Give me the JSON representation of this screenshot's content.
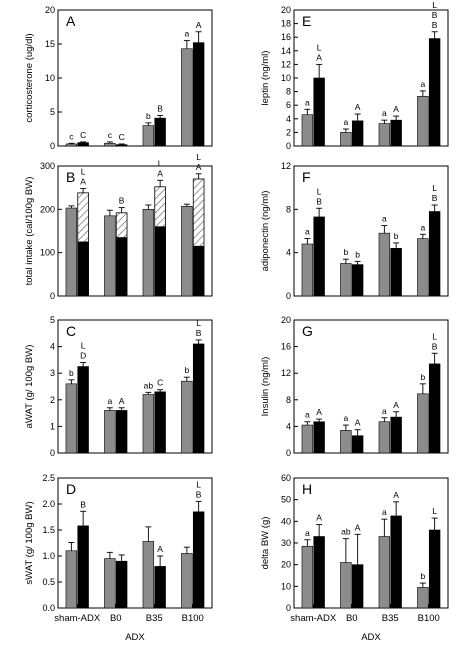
{
  "colors": {
    "gray": "#8c8c8c",
    "black": "#000000",
    "hatch_line": "#555555"
  },
  "x_group_label": "ADX",
  "chart_data": [
    {
      "panel": "A",
      "type": "bar",
      "ylabel": "corticosterone (ug/dl)",
      "ylim": [
        0,
        20
      ],
      "yticks": [
        0,
        5,
        10,
        15,
        20
      ],
      "categories": [
        "sham-ADX",
        "B0",
        "B35",
        "B100"
      ],
      "series": [
        {
          "values": [
            0.3,
            0.4,
            3.0,
            14.3
          ],
          "errors": [
            0.1,
            0.2,
            0.4,
            1.2
          ]
        },
        {
          "values": [
            0.5,
            0.2,
            4.1,
            15.2
          ],
          "errors": [
            0.1,
            0.1,
            0.4,
            1.6
          ]
        }
      ],
      "labels": [
        [
          "c",
          "C"
        ],
        [
          "c",
          "C"
        ],
        [
          "b",
          "B"
        ],
        [
          "a",
          "A"
        ]
      ],
      "show_xticks": false
    },
    {
      "panel": "B",
      "type": "bar",
      "stacked_hatched": true,
      "ylabel": "total intake (cal/100g BW)",
      "ylim": [
        0,
        300
      ],
      "yticks": [
        0,
        100,
        200,
        300
      ],
      "categories": [
        "sham-ADX",
        "B0",
        "B35",
        "B100"
      ],
      "series": [
        {
          "values": [
            203,
            185,
            200,
            207
          ],
          "errors": [
            5,
            13,
            10,
            5
          ]
        },
        {
          "values": [
            125,
            135,
            160,
            115
          ],
          "errors": [
            0,
            0,
            0,
            0
          ],
          "total": [
            238,
            192,
            252,
            270
          ],
          "total_errors": [
            10,
            12,
            15,
            12
          ]
        }
      ],
      "labels": [
        [
          "",
          "L\nA"
        ],
        [
          "",
          "B"
        ],
        [
          "",
          "L\nA"
        ],
        [
          "",
          "L\nA"
        ]
      ],
      "show_xticks": false
    },
    {
      "panel": "C",
      "type": "bar",
      "ylabel": "aWAT (g/ 100g BW)",
      "ylim": [
        0,
        5
      ],
      "yticks": [
        0,
        1,
        2,
        3,
        4,
        5
      ],
      "categories": [
        "sham-ADX",
        "B0",
        "B35",
        "B100"
      ],
      "series": [
        {
          "values": [
            2.6,
            1.6,
            2.2,
            2.7
          ],
          "errors": [
            0.15,
            0.1,
            0.08,
            0.15
          ]
        },
        {
          "values": [
            3.25,
            1.6,
            2.3,
            4.1
          ],
          "errors": [
            0.15,
            0.1,
            0.08,
            0.15
          ]
        }
      ],
      "labels": [
        [
          "b",
          "L\nD"
        ],
        [
          "a",
          "A"
        ],
        [
          "ab",
          "C"
        ],
        [
          "b",
          "L\nB"
        ]
      ],
      "show_xticks": false
    },
    {
      "panel": "D",
      "type": "bar",
      "ylabel": "sWAT (g/ 100g BW)",
      "ylim": [
        0,
        2.5
      ],
      "yticks": [
        0.0,
        0.5,
        1.0,
        1.5,
        2.0,
        2.5
      ],
      "categories": [
        "sham-ADX",
        "B0",
        "B35",
        "B100"
      ],
      "series": [
        {
          "values": [
            1.1,
            0.95,
            1.28,
            1.05
          ],
          "errors": [
            0.16,
            0.12,
            0.28,
            0.12
          ]
        },
        {
          "values": [
            1.58,
            0.9,
            0.8,
            1.85
          ],
          "errors": [
            0.28,
            0.12,
            0.2,
            0.2
          ]
        }
      ],
      "labels": [
        [
          "",
          "B"
        ],
        [
          "",
          ""
        ],
        [
          "",
          "A"
        ],
        [
          "",
          "L\nB"
        ]
      ],
      "show_xticks": true
    },
    {
      "panel": "E",
      "type": "bar",
      "ylabel": "leptin (ng/ml)",
      "ylim": [
        0,
        20
      ],
      "yticks": [
        0,
        2,
        4,
        6,
        8,
        10,
        12,
        14,
        16,
        18,
        20
      ],
      "categories": [
        "sham-ADX",
        "B0",
        "B35",
        "B100"
      ],
      "series": [
        {
          "values": [
            4.6,
            2.0,
            3.3,
            7.3
          ],
          "errors": [
            0.8,
            0.5,
            0.5,
            0.8
          ]
        },
        {
          "values": [
            10.0,
            3.7,
            3.8,
            15.8
          ],
          "errors": [
            2.0,
            1.0,
            0.6,
            1.0
          ]
        }
      ],
      "labels": [
        [
          "a",
          "L\nA"
        ],
        [
          "a",
          "A"
        ],
        [
          "a",
          "A"
        ],
        [
          "a",
          "L\nB\nB"
        ]
      ],
      "show_xticks": false
    },
    {
      "panel": "F",
      "type": "bar",
      "ylabel": "adiponectin (ng/ml)",
      "ylim": [
        0,
        12
      ],
      "yticks": [
        0,
        4,
        8,
        12
      ],
      "categories": [
        "sham-ADX",
        "B0",
        "B35",
        "B100"
      ],
      "series": [
        {
          "values": [
            4.8,
            3.0,
            5.8,
            5.3
          ],
          "errors": [
            0.5,
            0.4,
            0.7,
            0.4
          ]
        },
        {
          "values": [
            7.3,
            2.9,
            4.4,
            7.8
          ],
          "errors": [
            0.8,
            0.3,
            0.5,
            0.6
          ]
        }
      ],
      "labels": [
        [
          "a",
          "L\nB"
        ],
        [
          "b",
          "b"
        ],
        [
          "a",
          "b"
        ],
        [
          "a",
          "L\nB"
        ]
      ],
      "show_xticks": false
    },
    {
      "panel": "G",
      "type": "bar",
      "ylabel": "Insulin (ng/ml)",
      "ylim": [
        0,
        20
      ],
      "yticks": [
        0,
        4,
        8,
        12,
        16,
        20
      ],
      "categories": [
        "sham-ADX",
        "B0",
        "B35",
        "B100"
      ],
      "series": [
        {
          "values": [
            4.2,
            3.4,
            4.7,
            8.9
          ],
          "errors": [
            0.5,
            0.8,
            0.6,
            1.5
          ]
        },
        {
          "values": [
            4.7,
            2.6,
            5.4,
            13.4
          ],
          "errors": [
            0.4,
            0.9,
            0.8,
            1.6
          ]
        }
      ],
      "labels": [
        [
          "a",
          "A"
        ],
        [
          "a",
          "A"
        ],
        [
          "a",
          "A"
        ],
        [
          "b",
          "L\nB"
        ]
      ],
      "show_xticks": false
    },
    {
      "panel": "H",
      "type": "bar",
      "ylabel": "delta BW (g)",
      "ylim": [
        0,
        60
      ],
      "yticks": [
        0,
        10,
        20,
        30,
        40,
        50,
        60
      ],
      "categories": [
        "sham-ADX",
        "B0",
        "B35",
        "B100"
      ],
      "series": [
        {
          "values": [
            28.5,
            21.0,
            33.0,
            9.5
          ],
          "errors": [
            3.0,
            11.0,
            8.0,
            2.0
          ]
        },
        {
          "values": [
            33.0,
            20.0,
            42.5,
            36.0
          ],
          "errors": [
            5.5,
            14.0,
            6.5,
            5.5
          ]
        }
      ],
      "labels": [
        [
          "a",
          "A"
        ],
        [
          "ab",
          "A"
        ],
        [
          "a",
          "A"
        ],
        [
          "b",
          "L"
        ]
      ],
      "show_xticks": true
    }
  ]
}
